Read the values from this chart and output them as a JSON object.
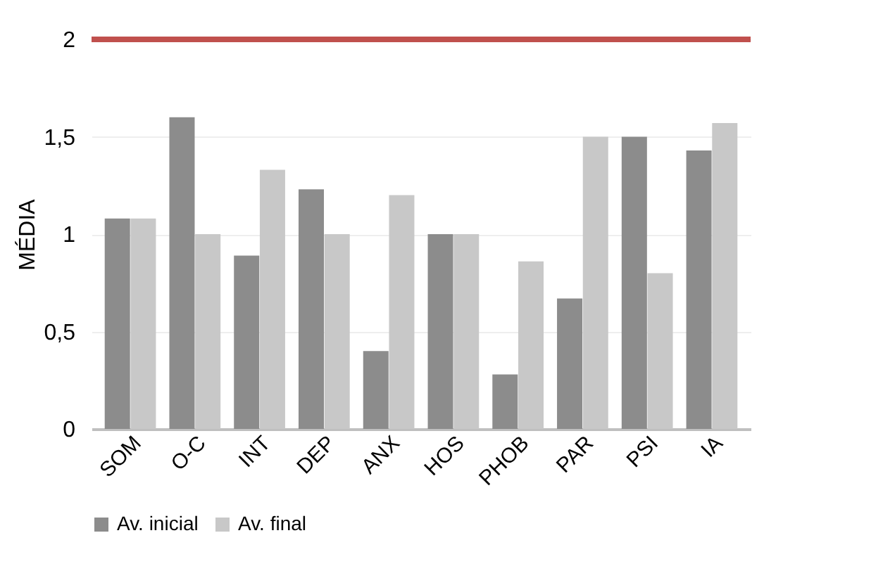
{
  "chart_data": {
    "type": "bar",
    "ylabel": "MÉDIA",
    "categories": [
      "SOM",
      "O-C",
      "INT",
      "DEP",
      "ANX",
      "HOS",
      "PHOB",
      "PAR",
      "PSI",
      "IA"
    ],
    "series": [
      {
        "name": "Av. inicial",
        "color": "#8c8c8c",
        "values": [
          1.08,
          1.6,
          0.89,
          1.23,
          0.4,
          1.0,
          0.28,
          0.67,
          1.5,
          1.43
        ]
      },
      {
        "name": "Av. final",
        "color": "#c8c8c8",
        "values": [
          1.08,
          1.0,
          1.33,
          1.0,
          1.2,
          1.0,
          0.86,
          1.5,
          0.8,
          1.57
        ]
      }
    ],
    "ylim": [
      0,
      2
    ],
    "yticks": [
      0,
      {
        "value": 0.5,
        "label": "0,5"
      },
      1,
      {
        "value": 1.5,
        "label": "1,5"
      },
      2
    ],
    "ref_lines": [
      {
        "axis": "y",
        "value": 2,
        "color": "#c0504d"
      }
    ],
    "grid": "y",
    "legend": "bottom"
  }
}
